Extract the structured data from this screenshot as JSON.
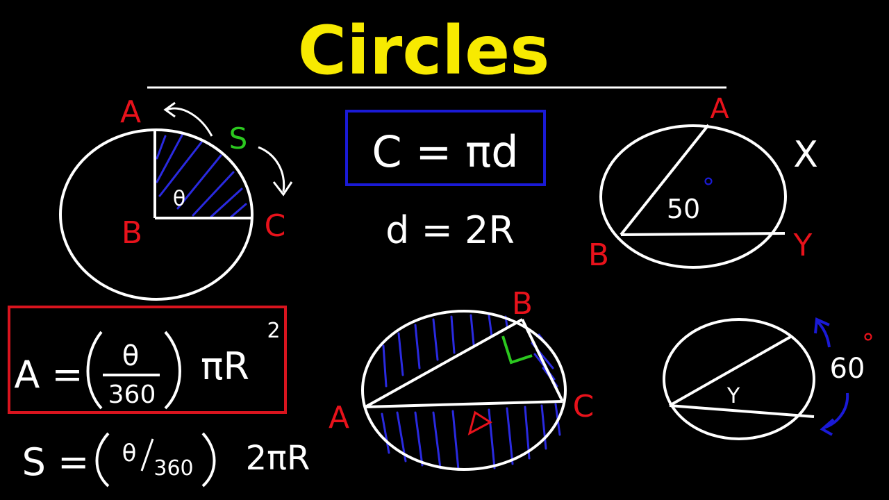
{
  "title": "Circles",
  "colors": {
    "background": "#000000",
    "title": "#f7ea00",
    "chalk": "#ffffff",
    "label": "#e8121b",
    "box_blue": "#1a1ad6",
    "box_red": "#d9141e",
    "green": "#2bc81f",
    "hatch": "#2a2ae0"
  },
  "sector_diagram": {
    "point_a": "A",
    "point_b": "B",
    "point_c": "C",
    "arc_label": "S",
    "angle_label": "θ"
  },
  "formulas": {
    "circumference": "C = πd",
    "diameter": "d = 2R",
    "sector_area_lhs": "A =",
    "sector_area_num": "θ",
    "sector_area_den": "360",
    "sector_area_rhs": "πR",
    "sector_area_exp": "2",
    "arc_length_lhs": "S =",
    "arc_length_frac_num": "θ",
    "arc_length_frac_den": "360",
    "arc_length_rhs": "2πR"
  },
  "inscribed_angle_diagram": {
    "point_a": "A",
    "point_b": "B",
    "point_x": "X",
    "point_y": "Y",
    "angle_value": "50",
    "degree_mark": "°"
  },
  "semicircle_diagram": {
    "point_a": "A",
    "point_b": "B",
    "point_c": "C"
  },
  "chord_angle_diagram": {
    "arc_value": "60",
    "degree_mark": "°",
    "angle_label": "Y"
  }
}
